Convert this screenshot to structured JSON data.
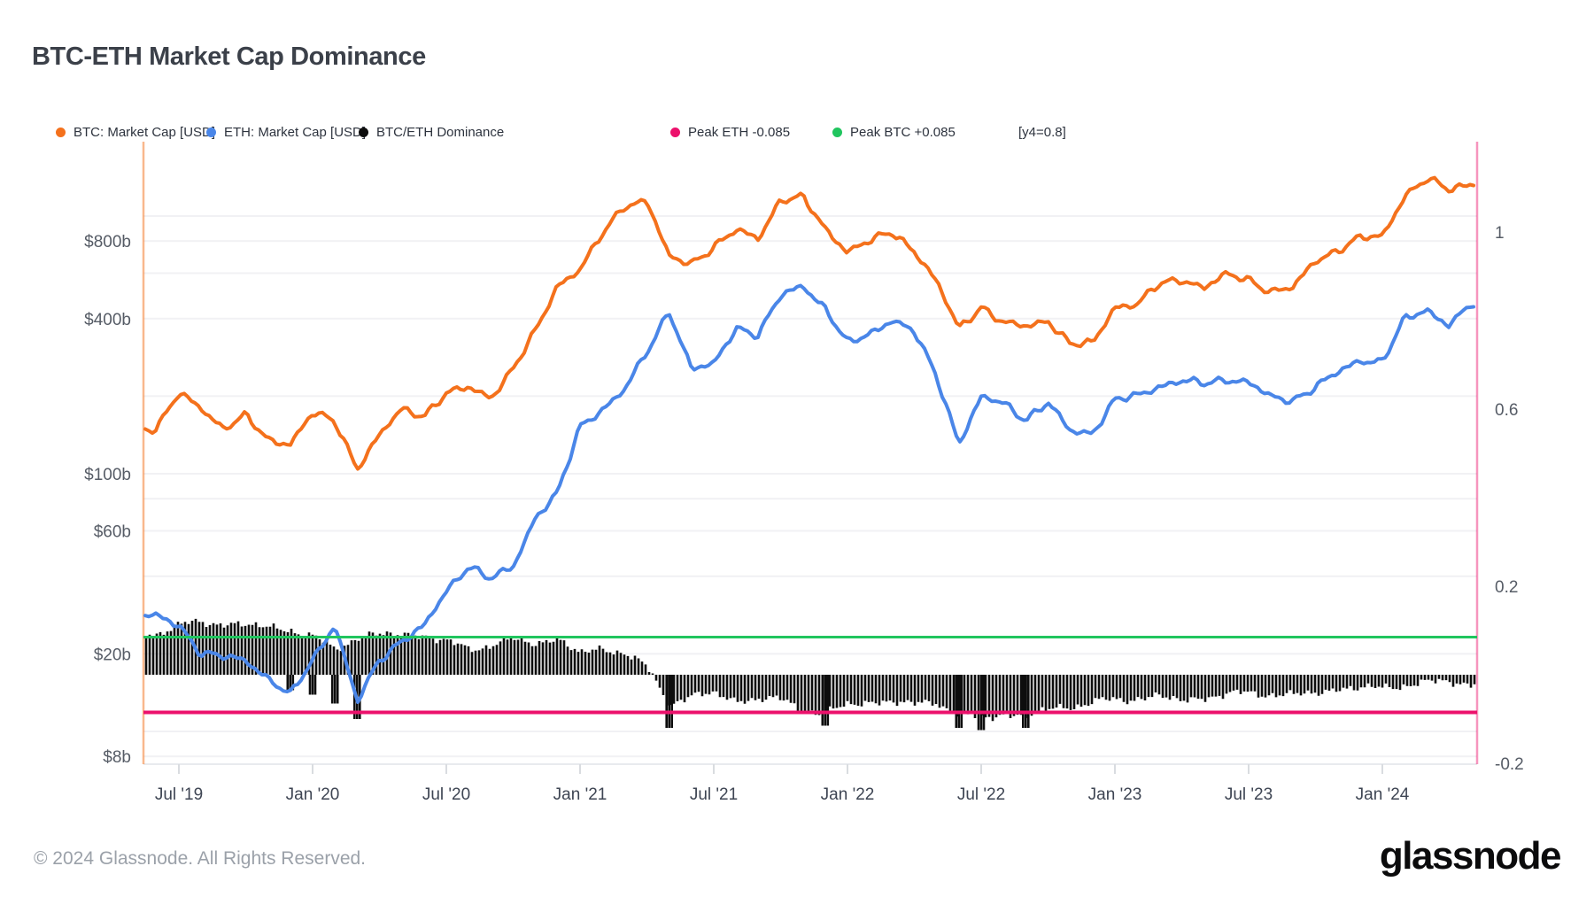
{
  "page": {
    "title": "BTC-ETH Market Cap Dominance",
    "footer": "© 2024 Glassnode. All Rights Reserved.",
    "brand": "glassnode"
  },
  "legend": [
    {
      "label": "BTC: Market Cap [USD]",
      "color": "#f4711c"
    },
    {
      "label": "ETH: Market Cap [USD]",
      "color": "#4a86e8"
    },
    {
      "label": "BTC/ETH Dominance",
      "color": "#0d0d0d"
    },
    {
      "label": "Peak ETH -0.085",
      "color": "#ec116c"
    },
    {
      "label": "Peak BTC +0.085",
      "color": "#20c55e"
    },
    {
      "label": "[y4=0.8]",
      "color": null
    }
  ],
  "chart_data": {
    "type": "line",
    "title": "BTC-ETH Market Cap Dominance",
    "months": [
      "2019-06",
      "2019-07",
      "2019-08",
      "2019-09",
      "2019-10",
      "2019-11",
      "2019-12",
      "2020-01",
      "2020-02",
      "2020-03",
      "2020-04",
      "2020-05",
      "2020-06",
      "2020-07",
      "2020-08",
      "2020-09",
      "2020-10",
      "2020-11",
      "2020-12",
      "2021-01",
      "2021-02",
      "2021-03",
      "2021-04",
      "2021-05",
      "2021-06",
      "2021-07",
      "2021-08",
      "2021-09",
      "2021-10",
      "2021-11",
      "2021-12",
      "2022-01",
      "2022-02",
      "2022-03",
      "2022-04",
      "2022-05",
      "2022-06",
      "2022-07",
      "2022-08",
      "2022-09",
      "2022-10",
      "2022-11",
      "2022-12",
      "2023-01",
      "2023-02",
      "2023-03",
      "2023-04",
      "2023-05",
      "2023-06",
      "2023-07",
      "2023-08",
      "2023-09",
      "2023-10",
      "2023-11",
      "2023-12",
      "2024-01",
      "2024-02",
      "2024-03",
      "2024-04",
      "2024-05"
    ],
    "series": [
      {
        "name": "BTC: Market Cap [USD]",
        "axis": "usd_log_billions",
        "color": "#f4711c",
        "values": [
          150,
          205,
          180,
          150,
          168,
          135,
          131,
          172,
          160,
          105,
          141,
          178,
          168,
          205,
          216,
          198,
          255,
          357,
          540,
          620,
          850,
          1100,
          1150,
          690,
          655,
          760,
          880,
          820,
          1160,
          1180,
          890,
          730,
          800,
          865,
          735,
          555,
          365,
          445,
          385,
          372,
          394,
          318,
          320,
          445,
          455,
          545,
          568,
          528,
          592,
          568,
          508,
          527,
          674,
          736,
          822,
          835,
          1200,
          1390,
          1270,
          1340
        ]
      },
      {
        "name": "ETH: Market Cap [USD]",
        "axis": "usd_log_billions",
        "color": "#4a86e8",
        "values": [
          28,
          26,
          20,
          19.5,
          19,
          16,
          13.8,
          19,
          26,
          13,
          19,
          22.5,
          25.5,
          35,
          44,
          39,
          43.5,
          68,
          84,
          152,
          178,
          212,
          295,
          430,
          255,
          265,
          370,
          345,
          490,
          540,
          437,
          320,
          350,
          395,
          355,
          240,
          131,
          197,
          189,
          162,
          188,
          147,
          144,
          193,
          201,
          219,
          229,
          224,
          233,
          226,
          198,
          193,
          217,
          247,
          276,
          272,
          398,
          432,
          378,
          455
        ]
      },
      {
        "name": "BTC/ETH Dominance",
        "axis": "ratio_right",
        "color": "#0d0d0d",
        "style": "bars-from-zero",
        "values": [
          0.095,
          0.11,
          0.12,
          0.115,
          0.112,
          0.108,
          0.102,
          0.085,
          0.058,
          0.085,
          0.09,
          0.092,
          0.088,
          0.075,
          0.058,
          0.068,
          0.078,
          0.072,
          0.082,
          0.048,
          0.058,
          0.052,
          0.015,
          -0.065,
          -0.048,
          -0.042,
          -0.06,
          -0.052,
          -0.058,
          -0.078,
          -0.088,
          -0.068,
          -0.062,
          -0.06,
          -0.068,
          -0.06,
          -0.092,
          -0.098,
          -0.088,
          -0.095,
          -0.078,
          -0.072,
          -0.062,
          -0.058,
          -0.052,
          -0.05,
          -0.058,
          -0.052,
          -0.044,
          -0.042,
          -0.042,
          -0.048,
          -0.04,
          -0.032,
          -0.03,
          -0.03,
          -0.022,
          -0.02,
          -0.013,
          -0.022
        ]
      }
    ],
    "dominance_spikes": [
      {
        "month": "2019-12",
        "value": -0.035
      },
      {
        "month": "2020-01",
        "value": -0.045
      },
      {
        "month": "2020-02",
        "value": -0.065
      },
      {
        "month": "2020-03",
        "value": -0.1
      },
      {
        "month": "2021-05",
        "value": -0.12
      },
      {
        "month": "2021-12",
        "value": -0.115
      },
      {
        "month": "2022-06",
        "value": -0.12
      },
      {
        "month": "2022-07",
        "value": -0.125
      },
      {
        "month": "2022-09",
        "value": -0.12
      }
    ],
    "hlines": [
      {
        "label": "Peak ETH -0.085",
        "value": -0.085,
        "color": "#ec116c"
      },
      {
        "label": "Peak BTC +0.085",
        "value": 0.085,
        "color": "#20c55e"
      }
    ],
    "left_axis": {
      "scale": "log",
      "unit": "USD billions",
      "tick_labels": [
        "$800b",
        "$400b",
        "$100b",
        "$60b",
        "$20b",
        "$8b"
      ],
      "tick_values": [
        800,
        400,
        100,
        60,
        20,
        8
      ],
      "gridline_values": [
        1000,
        800,
        600,
        400,
        200,
        100,
        80,
        60,
        40,
        20,
        10,
        8
      ]
    },
    "right_axis": {
      "scale": "linear",
      "tick_labels": [
        "1",
        "0.6",
        "0.2",
        "-0.2"
      ],
      "tick_values": [
        1,
        0.6,
        0.2,
        -0.2
      ],
      "note": "[y4=0.8]"
    },
    "x_axis": {
      "tick_labels": [
        "Jul '19",
        "Jan '20",
        "Jul '20",
        "Jan '21",
        "Jul '21",
        "Jan '22",
        "Jul '22",
        "Jan '23",
        "Jul '23",
        "Jan '24"
      ],
      "tick_months": [
        "2019-07",
        "2020-01",
        "2020-07",
        "2021-01",
        "2021-07",
        "2022-01",
        "2022-07",
        "2023-01",
        "2023-07",
        "2024-01"
      ]
    },
    "legend_position": "top",
    "grid": "horizontal-only"
  }
}
